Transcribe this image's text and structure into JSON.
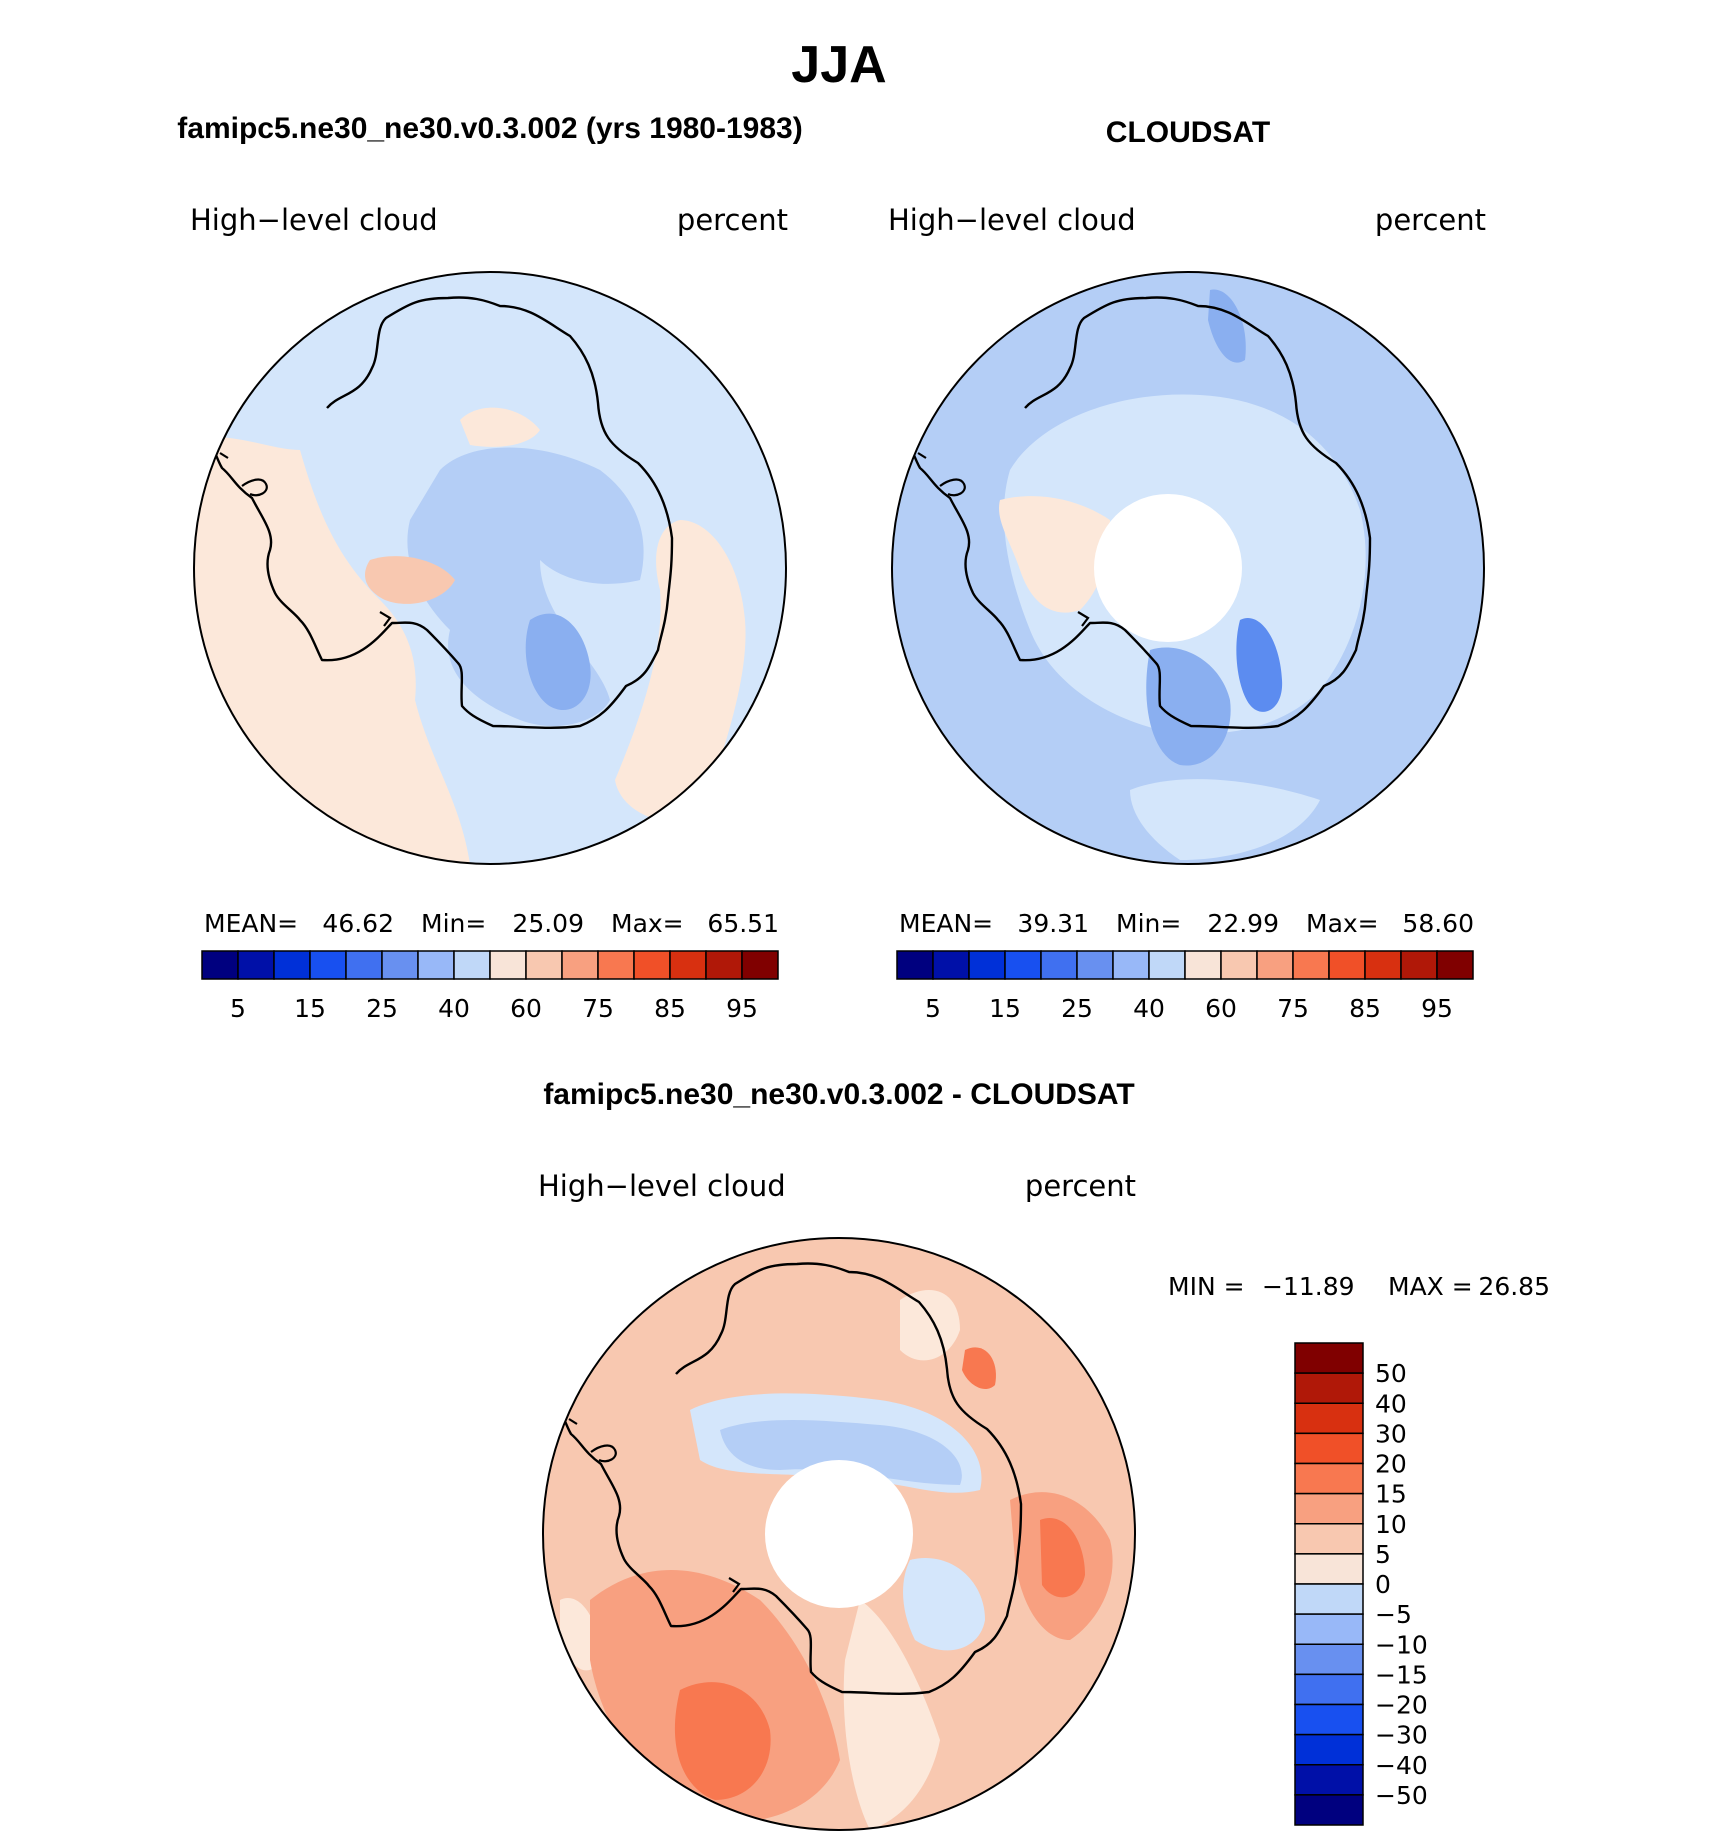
{
  "page_title": "JJA",
  "chart_data": [
    {
      "type": "heatmap",
      "projection": "south-polar-stereographic",
      "title": "famipc5.ne30_ne30.v0.3.002 (yrs 1980-1983)",
      "left_label": "High−level cloud",
      "right_label": "percent",
      "stats": {
        "mean_label": "MEAN=",
        "mean": "46.62",
        "min_label": "Min=",
        "min": "25.09",
        "max_label": "Max=",
        "max": "65.51"
      },
      "colorbar": {
        "orientation": "horizontal",
        "tick_labels": [
          "5",
          "15",
          "25",
          "40",
          "60",
          "75",
          "85",
          "95"
        ],
        "colors": [
          "#00007f",
          "#0010a8",
          "#0030d8",
          "#1850f0",
          "#4070f0",
          "#6890f0",
          "#98b8f8",
          "#c0d8f8",
          "#f8e4d8",
          "#f8c8b0",
          "#f8a080",
          "#f87850",
          "#f05028",
          "#d83010",
          "#b01808",
          "#800000"
        ]
      },
      "regions": [
        {
          "level": "40-50",
          "color": "#d4e6fb",
          "role": "background"
        },
        {
          "level": "50-60",
          "color": "#fce8da",
          "role": "western sector"
        },
        {
          "level": "30-40",
          "color": "#b4cef6",
          "role": "interior"
        },
        {
          "level": "25-30",
          "color": "#8aaff0",
          "role": "core"
        }
      ]
    },
    {
      "type": "heatmap",
      "projection": "south-polar-stereographic",
      "title": "CLOUDSAT",
      "left_label": "High−level cloud",
      "right_label": "percent",
      "stats": {
        "mean_label": "MEAN=",
        "mean": "39.31",
        "min_label": "Min=",
        "min": "22.99",
        "max_label": "Max=",
        "max": "58.60"
      },
      "colorbar": {
        "orientation": "horizontal",
        "tick_labels": [
          "5",
          "15",
          "25",
          "40",
          "60",
          "75",
          "85",
          "95"
        ],
        "colors": [
          "#00007f",
          "#0010a8",
          "#0030d8",
          "#1850f0",
          "#4070f0",
          "#6890f0",
          "#98b8f8",
          "#c0d8f8",
          "#f8e4d8",
          "#f8c8b0",
          "#f8a080",
          "#f87850",
          "#f05028",
          "#d83010",
          "#b01808",
          "#800000"
        ]
      },
      "regions": [
        {
          "level": "30-40",
          "color": "#b4cef6",
          "role": "background"
        },
        {
          "level": "40-50",
          "color": "#d4e6fb",
          "role": "inner ring"
        },
        {
          "level": "50-60",
          "color": "#fce8da",
          "role": "peninsula"
        },
        {
          "level": "25-30",
          "color": "#8aaff0",
          "role": "patches"
        },
        {
          "level": "20-25",
          "color": "#5c8cf0",
          "role": "core"
        }
      ],
      "missing_data_hole": true
    },
    {
      "type": "heatmap",
      "projection": "south-polar-stereographic",
      "title": "famipc5.ne30_ne30.v0.3.002 - CLOUDSAT",
      "left_label": "High−level cloud",
      "right_label": "percent",
      "stats": {
        "min_label": "MIN =",
        "min": "−11.89",
        "max_label": "MAX =",
        "max": "26.85"
      },
      "colorbar": {
        "orientation": "vertical",
        "tick_labels": [
          "50",
          "40",
          "30",
          "20",
          "15",
          "10",
          "5",
          "0",
          "−5",
          "−10",
          "−15",
          "−20",
          "−30",
          "−40",
          "−50"
        ],
        "colors": [
          "#800000",
          "#b01808",
          "#d83010",
          "#f05028",
          "#f87850",
          "#f8a080",
          "#f8c8b0",
          "#f8e4d8",
          "#c0d8f8",
          "#98b8f8",
          "#6890f0",
          "#4070f0",
          "#1850f0",
          "#0030d8",
          "#0010a8",
          "#00007f"
        ]
      },
      "regions": [
        {
          "level": "5-10",
          "color": "#f8c8b0",
          "role": "background"
        },
        {
          "level": "0-5",
          "color": "#fce8da",
          "role": "light patches"
        },
        {
          "level": "10-15",
          "color": "#f8a080",
          "role": "south sector"
        },
        {
          "level": "15-20",
          "color": "#f87850",
          "role": "maxima"
        },
        {
          "level": "-5-0",
          "color": "#d4e6fb",
          "role": "interior"
        },
        {
          "level": "-10--5",
          "color": "#b4cef6",
          "role": "interior negative"
        }
      ],
      "missing_data_hole": true
    }
  ]
}
